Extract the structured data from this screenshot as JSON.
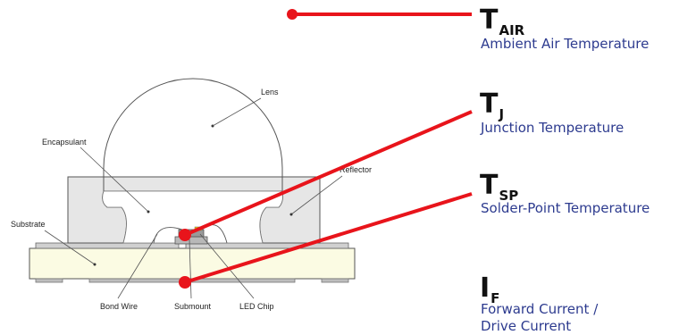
{
  "symbols": [
    {
      "main": "T",
      "sub": "AIR",
      "desc": "Ambient Air Temperature"
    },
    {
      "main": "T",
      "sub": "J",
      "desc": "Junction Temperature"
    },
    {
      "main": "T",
      "sub": "SP",
      "desc": "Solder-Point Temperature"
    },
    {
      "main": "I",
      "sub": "F",
      "desc_line1": "Forward Current /",
      "desc_line2": "Drive Current"
    }
  ],
  "parts": {
    "lens": "Lens",
    "encapsulant": "Encapsulant",
    "reflector": "Reflector",
    "substrate": "Substrate",
    "bond_wire": "Bond Wire",
    "submount": "Submount",
    "led_chip": "LED Chip"
  },
  "colors": {
    "marker": "#e8141b",
    "description_text": "#2d3b8f",
    "substrate_fill": "#fbfbe3",
    "reflector_fill": "#e6e6e6",
    "chip_fill": "#9a9a9a"
  }
}
